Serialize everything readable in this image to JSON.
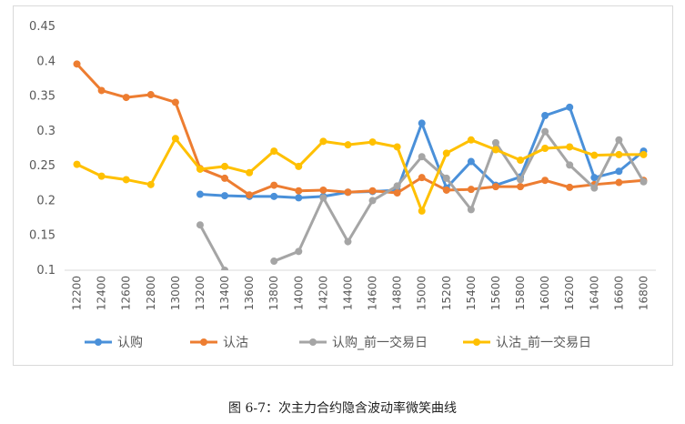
{
  "caption": "图 6-7：次主力合约隐含波动率微笑曲线",
  "chart_data": {
    "type": "line",
    "title": "",
    "xlabel": "",
    "ylabel": "",
    "ylim": [
      0.1,
      0.45
    ],
    "yticks": [
      "0.1",
      "0.15",
      "0.2",
      "0.25",
      "0.3",
      "0.35",
      "0.4",
      "0.45"
    ],
    "grid": false,
    "legend_position": "bottom",
    "categories": [
      "12200",
      "12400",
      "12600",
      "12800",
      "13000",
      "13200",
      "13400",
      "13600",
      "13800",
      "14000",
      "14200",
      "14400",
      "14600",
      "14800",
      "15000",
      "15200",
      "15400",
      "15600",
      "15800",
      "16000",
      "16200",
      "16400",
      "16600",
      "16800"
    ],
    "series": [
      {
        "name": "认购",
        "color": "#4a90d9",
        "values": [
          null,
          null,
          null,
          null,
          null,
          0.209,
          0.207,
          0.206,
          0.206,
          0.204,
          0.206,
          0.212,
          0.213,
          0.215,
          0.311,
          0.218,
          0.256,
          0.222,
          0.234,
          0.322,
          0.334,
          0.233,
          0.242,
          0.271
        ]
      },
      {
        "name": "认沽",
        "color": "#ed7d31",
        "values": [
          0.396,
          0.358,
          0.348,
          0.352,
          0.341,
          0.246,
          0.232,
          0.208,
          0.222,
          0.214,
          0.215,
          0.212,
          0.214,
          0.211,
          0.233,
          0.215,
          0.216,
          0.22,
          0.22,
          0.229,
          0.219,
          0.223,
          0.226,
          0.229
        ]
      },
      {
        "name": "认购_前一交易日",
        "color": "#a5a5a5",
        "values": [
          null,
          null,
          null,
          null,
          null,
          0.165,
          0.1,
          null,
          0.113,
          0.127,
          0.204,
          0.141,
          0.2,
          0.221,
          0.263,
          0.232,
          0.187,
          0.283,
          0.23,
          0.299,
          0.251,
          0.218,
          0.287,
          0.227
        ]
      },
      {
        "name": "认沽_前一交易日",
        "color": "#ffc000",
        "values": [
          0.252,
          0.235,
          0.23,
          0.223,
          0.289,
          0.245,
          0.249,
          0.24,
          0.271,
          0.249,
          0.285,
          0.28,
          0.284,
          0.277,
          0.185,
          0.268,
          0.287,
          0.273,
          0.258,
          0.275,
          0.277,
          0.265,
          0.266,
          0.266
        ]
      }
    ]
  }
}
